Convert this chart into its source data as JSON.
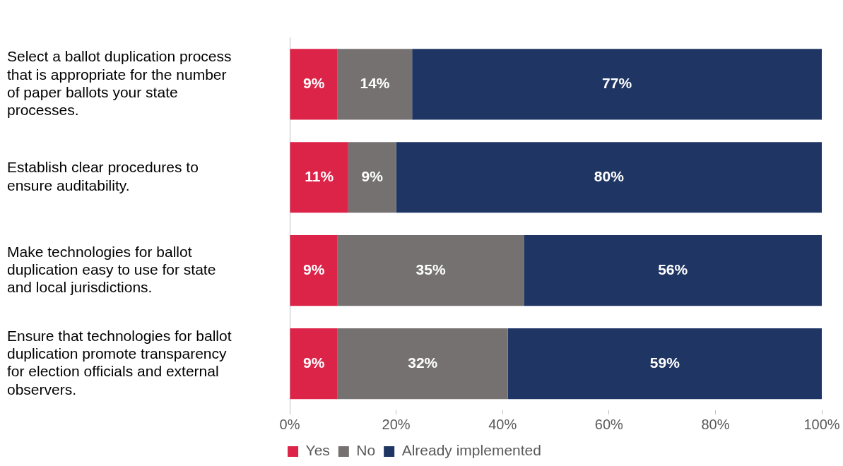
{
  "chart_data": {
    "type": "bar",
    "orientation": "horizontal",
    "stacked": true,
    "categories": [
      "Select a ballot duplication process that is appropriate for the number of paper ballots your state processes.",
      "Establish clear procedures to ensure auditability.",
      "Make technologies for ballot duplication easy to use for state and local jurisdictions.",
      "Ensure that technologies for ballot duplication promote transparency for election officials and external observers."
    ],
    "series": [
      {
        "name": "Yes",
        "color": "#dc2348",
        "values": [
          9,
          11,
          9,
          9
        ],
        "value_labels": [
          "9%",
          "11%",
          "9%",
          "9%"
        ]
      },
      {
        "name": "No",
        "color": "#767171",
        "values": [
          14,
          9,
          35,
          32
        ],
        "value_labels": [
          "14%",
          "9%",
          "35%",
          "32%"
        ]
      },
      {
        "name": "Already implemented",
        "color": "#1f3564",
        "values": [
          77,
          80,
          56,
          59
        ],
        "value_labels": [
          "77%",
          "80%",
          "56%",
          "59%"
        ]
      }
    ],
    "xlim": [
      0,
      100
    ],
    "xticks": [
      {
        "value": 0,
        "label": "0%"
      },
      {
        "value": 20,
        "label": "20%"
      },
      {
        "value": 40,
        "label": "40%"
      },
      {
        "value": 60,
        "label": "60%"
      },
      {
        "value": 80,
        "label": "80%"
      },
      {
        "value": 100,
        "label": "100%"
      }
    ],
    "grid": false,
    "legend": "bottom"
  }
}
